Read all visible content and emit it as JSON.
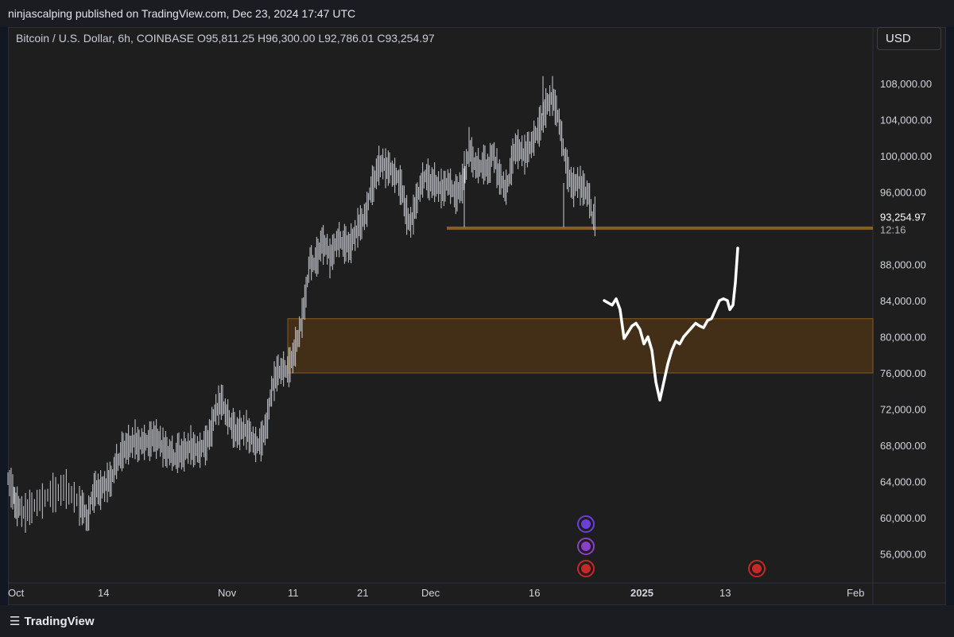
{
  "header": {
    "published": "ninjascalping published on TradingView.com, Dec 23, 2024 17:47 UTC"
  },
  "symbol": {
    "name": "Bitcoin / U.S. Dollar, 6h, COINBASE",
    "o_label": "O",
    "o": "95,811.25",
    "h_label": "H",
    "h": "96,300.00",
    "l_label": "L",
    "l": "92,786.01",
    "c_label": "C",
    "c": "93,254.97"
  },
  "currency": "USD",
  "footer": {
    "brand": "TradingView",
    "logo": "tradingview-logo-icon"
  },
  "colors": {
    "candle": "#c9ccd3",
    "zone_fill": "#4a3218",
    "zone_border": "#8a5a1e",
    "line": "#b57a1c",
    "drawing": "#ffffff",
    "price_label": "#1e1e1e"
  },
  "chart_data": {
    "type": "line",
    "series": [
      {
        "values": [
          [
            0,
            64500
          ],
          [
            6,
            62800
          ],
          [
            10,
            61400
          ],
          [
            15,
            61000
          ],
          [
            22,
            60500
          ],
          [
            30,
            61200
          ],
          [
            40,
            61800
          ],
          [
            50,
            62500
          ],
          [
            60,
            62700
          ],
          [
            70,
            63200
          ],
          [
            80,
            62600
          ],
          [
            90,
            61500
          ],
          [
            95,
            61000
          ],
          [
            100,
            59800
          ],
          [
            105,
            62000
          ],
          [
            110,
            63200
          ],
          [
            115,
            62900
          ],
          [
            120,
            63500
          ],
          [
            125,
            63900
          ],
          [
            130,
            64200
          ],
          [
            135,
            65800
          ],
          [
            140,
            66500
          ],
          [
            145,
            67600
          ],
          [
            150,
            67800
          ],
          [
            155,
            68200
          ],
          [
            160,
            68500
          ],
          [
            165,
            68000
          ],
          [
            170,
            68400
          ],
          [
            175,
            68300
          ],
          [
            180,
            68700
          ],
          [
            185,
            68900
          ],
          [
            190,
            68500
          ],
          [
            195,
            67800
          ],
          [
            200,
            67400
          ],
          [
            205,
            67200
          ],
          [
            210,
            66600
          ],
          [
            215,
            67300
          ],
          [
            220,
            67000
          ],
          [
            225,
            67600
          ],
          [
            230,
            67900
          ],
          [
            235,
            67500
          ],
          [
            240,
            67400
          ],
          [
            245,
            67800
          ],
          [
            250,
            68300
          ],
          [
            255,
            69500
          ],
          [
            260,
            71500
          ],
          [
            265,
            72500
          ],
          [
            270,
            72800
          ],
          [
            275,
            71300
          ],
          [
            280,
            70500
          ],
          [
            285,
            69600
          ],
          [
            290,
            69500
          ],
          [
            295,
            69800
          ],
          [
            300,
            69600
          ],
          [
            305,
            69000
          ],
          [
            310,
            68300
          ],
          [
            315,
            68000
          ],
          [
            320,
            68900
          ],
          [
            325,
            70000
          ],
          [
            330,
            73200
          ],
          [
            335,
            75200
          ],
          [
            340,
            76200
          ],
          [
            345,
            76400
          ],
          [
            350,
            76300
          ],
          [
            355,
            76800
          ],
          [
            360,
            78300
          ],
          [
            365,
            80000
          ],
          [
            370,
            82000
          ],
          [
            375,
            85000
          ],
          [
            380,
            88500
          ],
          [
            385,
            88000
          ],
          [
            390,
            89000
          ],
          [
            395,
            90500
          ],
          [
            400,
            90000
          ],
          [
            405,
            88800
          ],
          [
            410,
            89600
          ],
          [
            415,
            90800
          ],
          [
            420,
            90500
          ],
          [
            425,
            90200
          ],
          [
            430,
            90000
          ],
          [
            435,
            91000
          ],
          [
            440,
            92000
          ],
          [
            445,
            92600
          ],
          [
            450,
            93500
          ],
          [
            455,
            95800
          ],
          [
            460,
            97000
          ],
          [
            465,
            98500
          ],
          [
            470,
            99200
          ],
          [
            475,
            98800
          ],
          [
            480,
            98600
          ],
          [
            485,
            98000
          ],
          [
            490,
            97500
          ],
          [
            495,
            96500
          ],
          [
            500,
            94000
          ],
          [
            505,
            92500
          ],
          [
            510,
            93500
          ],
          [
            515,
            95500
          ],
          [
            520,
            96800
          ],
          [
            525,
            97800
          ],
          [
            530,
            97200
          ],
          [
            535,
            97000
          ],
          [
            540,
            96800
          ],
          [
            545,
            96200
          ],
          [
            550,
            96600
          ],
          [
            555,
            97000
          ],
          [
            560,
            96000
          ],
          [
            565,
            95800
          ],
          [
            570,
            96600
          ],
          [
            575,
            97800
          ],
          [
            580,
            101000
          ],
          [
            585,
            99500
          ],
          [
            590,
            98700
          ],
          [
            595,
            98900
          ],
          [
            600,
            99000
          ],
          [
            605,
            98400
          ],
          [
            610,
            100500
          ],
          [
            615,
            98500
          ],
          [
            620,
            97400
          ],
          [
            625,
            96300
          ],
          [
            630,
            97200
          ],
          [
            635,
            100000
          ],
          [
            640,
            101000
          ],
          [
            645,
            100500
          ],
          [
            650,
            100200
          ],
          [
            655,
            100800
          ],
          [
            660,
            101500
          ],
          [
            665,
            102500
          ],
          [
            670,
            103500
          ],
          [
            675,
            104800
          ],
          [
            680,
            106000
          ],
          [
            685,
            106500
          ],
          [
            690,
            105000
          ],
          [
            695,
            103000
          ],
          [
            700,
            100000
          ],
          [
            705,
            98000
          ],
          [
            710,
            96500
          ],
          [
            715,
            97000
          ],
          [
            720,
            96800
          ],
          [
            725,
            96200
          ],
          [
            730,
            95800
          ],
          [
            735,
            93300
          ]
        ]
      }
    ],
    "drawing_path": [
      [
        750,
        84000
      ],
      [
        760,
        83500
      ],
      [
        765,
        84200
      ],
      [
        770,
        83000
      ],
      [
        775,
        79800
      ],
      [
        780,
        80500
      ],
      [
        785,
        81200
      ],
      [
        790,
        81500
      ],
      [
        795,
        80800
      ],
      [
        800,
        79200
      ],
      [
        805,
        80000
      ],
      [
        810,
        78500
      ],
      [
        815,
        75000
      ],
      [
        820,
        73000
      ],
      [
        825,
        75000
      ],
      [
        830,
        77000
      ],
      [
        835,
        78500
      ],
      [
        840,
        79500
      ],
      [
        845,
        79200
      ],
      [
        850,
        80000
      ],
      [
        855,
        80500
      ],
      [
        860,
        81000
      ],
      [
        865,
        81500
      ],
      [
        870,
        81200
      ],
      [
        875,
        81000
      ],
      [
        880,
        81800
      ],
      [
        885,
        82000
      ],
      [
        890,
        83000
      ],
      [
        895,
        84000
      ],
      [
        900,
        84200
      ],
      [
        905,
        84000
      ],
      [
        908,
        83000
      ],
      [
        912,
        83500
      ],
      [
        915,
        86000
      ],
      [
        918,
        89800
      ]
    ],
    "support_level": 92000,
    "zone": [
      76000,
      82000
    ],
    "price_label": "93,254.97",
    "countdown": "12:16",
    "ylim": [
      52800,
      111500
    ],
    "y_ticks": [
      {
        "value": 108000,
        "label": "108,000.00"
      },
      {
        "value": 104000,
        "label": "104,000.00"
      },
      {
        "value": 100000,
        "label": "100,000.00"
      },
      {
        "value": 96000,
        "label": "96,000.00"
      },
      {
        "value": 88000,
        "label": "88,000.00"
      },
      {
        "value": 84000,
        "label": "84,000.00"
      },
      {
        "value": 80000,
        "label": "80,000.00"
      },
      {
        "value": 76000,
        "label": "76,000.00"
      },
      {
        "value": 72000,
        "label": "72,000.00"
      },
      {
        "value": 68000,
        "label": "68,000.00"
      },
      {
        "value": 64000,
        "label": "64,000.00"
      },
      {
        "value": 60000,
        "label": "60,000.00"
      },
      {
        "value": 56000,
        "label": "56,000.00"
      }
    ],
    "x_ticks": [
      {
        "label": "Oct",
        "bold": false
      },
      {
        "label": "14",
        "bold": false
      },
      {
        "label": "Nov",
        "bold": false
      },
      {
        "label": "11",
        "bold": false
      },
      {
        "label": "21",
        "bold": false
      },
      {
        "label": "Dec",
        "bold": false
      },
      {
        "label": "16",
        "bold": false
      },
      {
        "label": "2025",
        "bold": true
      },
      {
        "label": "13",
        "bold": false
      },
      {
        "label": "Feb",
        "bold": false
      }
    ],
    "events": [
      {
        "icon": "sparkle-event-icon"
      },
      {
        "icon": "lightning-event-icon"
      },
      {
        "icon": "us-flag-event-icon"
      },
      {
        "icon": "us-flag-event-icon"
      }
    ]
  }
}
